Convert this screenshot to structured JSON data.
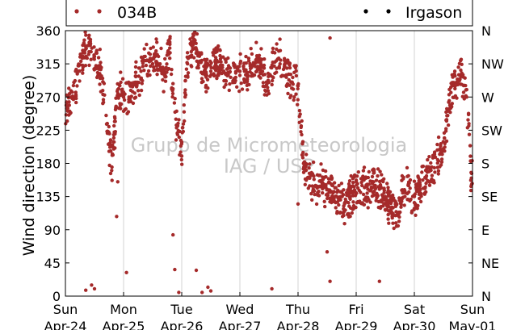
{
  "chart_data": {
    "type": "scatter",
    "title": "",
    "xlabel": "",
    "ylabel": "Wind direction (degree)",
    "ylim": [
      0,
      360
    ],
    "y_ticks": [
      0,
      45,
      90,
      135,
      180,
      225,
      270,
      315,
      360
    ],
    "right_tick_labels": [
      "N",
      "NE",
      "E",
      "SE",
      "S",
      "SW",
      "W",
      "NW",
      "N"
    ],
    "xlim": [
      "2018-04-24 00:00",
      "2018-05-01 00:00"
    ],
    "x_tick_labels": [
      {
        "day": "Sun",
        "date": "Apr-24"
      },
      {
        "day": "Mon",
        "date": "Apr-25"
      },
      {
        "day": "Tue",
        "date": "Apr-26"
      },
      {
        "day": "Wed",
        "date": "Apr-27"
      },
      {
        "day": "Thu",
        "date": "Apr-28"
      },
      {
        "day": "Fri",
        "date": "Apr-29"
      },
      {
        "day": "Sat",
        "date": "Apr-30"
      },
      {
        "day": "Sun",
        "date": "May-01"
      }
    ],
    "grid": "vertical",
    "legend_position": "top",
    "watermark": [
      "Grupo de Micrometeorologia",
      "IAG / USP"
    ],
    "series": [
      {
        "name": "034B",
        "color": "#a52a2a",
        "x_days": [
          0.02,
          0.1,
          0.2,
          0.3,
          0.4,
          0.5,
          0.6,
          0.7,
          0.8,
          0.9,
          1.0,
          1.1,
          1.2,
          1.3,
          1.4,
          1.5,
          1.6,
          1.7,
          1.8,
          1.9,
          2.0,
          2.1,
          2.2,
          2.3,
          2.4,
          2.5,
          2.6,
          2.7,
          2.8,
          2.9,
          3.0,
          3.1,
          3.2,
          3.3,
          3.4,
          3.5,
          3.6,
          3.7,
          3.8,
          3.9,
          4.0,
          4.1,
          4.2,
          4.3,
          4.4,
          4.5,
          4.6,
          4.7,
          4.8,
          4.9,
          5.0,
          5.1,
          5.2,
          5.3,
          5.4,
          5.5,
          5.6,
          5.7,
          5.8,
          5.9,
          6.0,
          6.1,
          6.2,
          6.3,
          6.4,
          6.5,
          6.6,
          6.7,
          6.8,
          6.9,
          6.98
        ],
        "values": [
          262,
          270,
          285,
          330,
          340,
          325,
          310,
          245,
          175,
          280,
          270,
          265,
          290,
          305,
          320,
          315,
          325,
          300,
          330,
          240,
          190,
          315,
          345,
          330,
          300,
          305,
          320,
          310,
          300,
          295,
          305,
          300,
          310,
          320,
          300,
          290,
          330,
          320,
          300,
          290,
          285,
          175,
          160,
          150,
          155,
          145,
          140,
          130,
          125,
          135,
          140,
          150,
          145,
          155,
          145,
          135,
          120,
          110,
          140,
          150,
          135,
          145,
          160,
          175,
          185,
          200,
          265,
          285,
          300,
          270,
          160
        ]
      },
      {
        "name": "Irgason",
        "color": "#000000",
        "values": []
      }
    ]
  }
}
